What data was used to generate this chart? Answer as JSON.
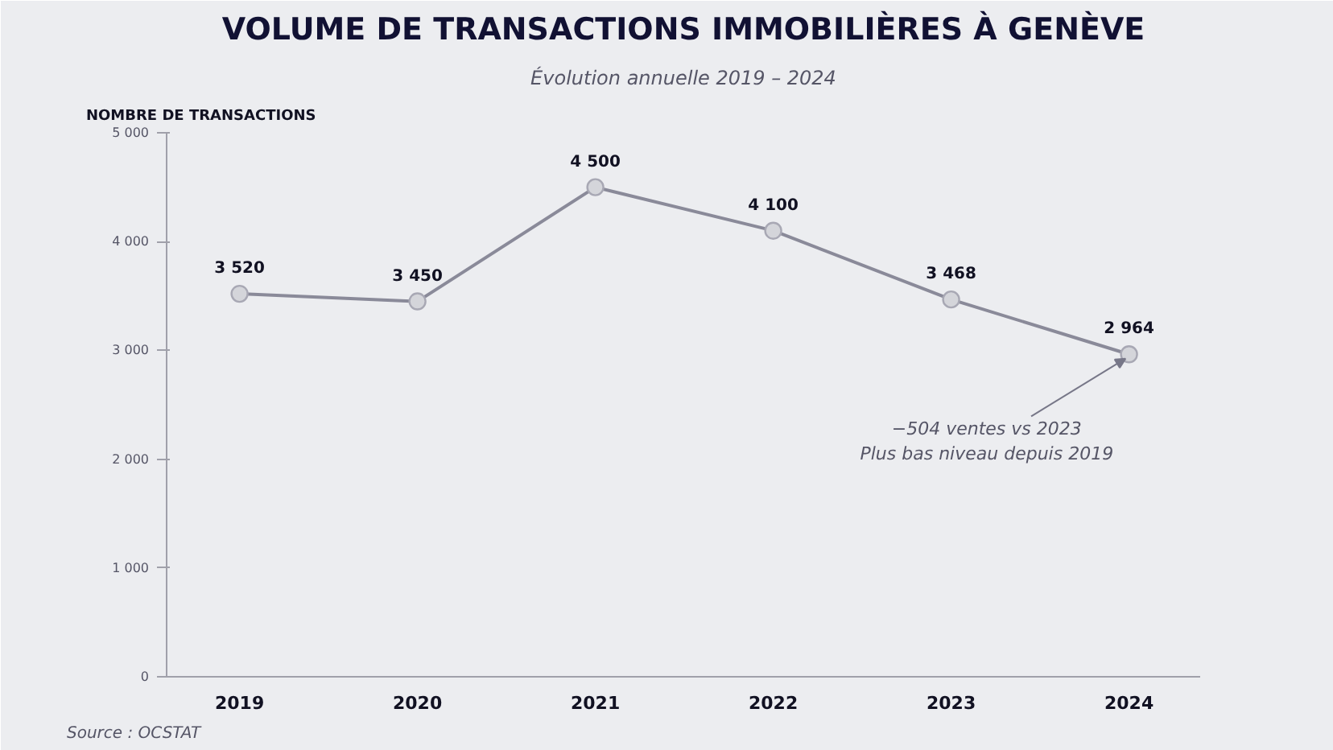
{
  "chart_data": {
    "type": "line",
    "title": "VOLUME DE TRANSACTIONS IMMOBILIÈRES À GENÈVE",
    "subtitle": "Évolution annuelle 2019 – 2024",
    "ylabel": "NOMBRE DE TRANSACTIONS",
    "categories": [
      "2019",
      "2020",
      "2021",
      "2022",
      "2023",
      "2024"
    ],
    "series": [
      {
        "color": "#8a8a99",
        "values": [
          3520,
          3450,
          4500,
          4100,
          3468,
          2964
        ],
        "value_labels": [
          "3 520",
          "3 450",
          "4 500",
          "4 100",
          "3 468",
          "2 964"
        ]
      }
    ],
    "ylim": [
      0,
      5000
    ],
    "yticks": [
      0,
      {
        "value": 1000,
        "label": "1 000"
      },
      {
        "value": 2000,
        "label": "2 000"
      },
      {
        "value": 3000,
        "label": "3 000"
      },
      {
        "value": 4000,
        "label": "4 000"
      },
      {
        "value": 5000,
        "label": "5 000"
      }
    ],
    "marker": "circle",
    "line_style": "solid",
    "grid": false,
    "annotations": [
      {
        "text": "−504 ventes vs 2023\nPlus bas niveau depuis 2019",
        "x": "2024",
        "y": 2964
      },
      "Source : OCSTAT"
    ]
  }
}
